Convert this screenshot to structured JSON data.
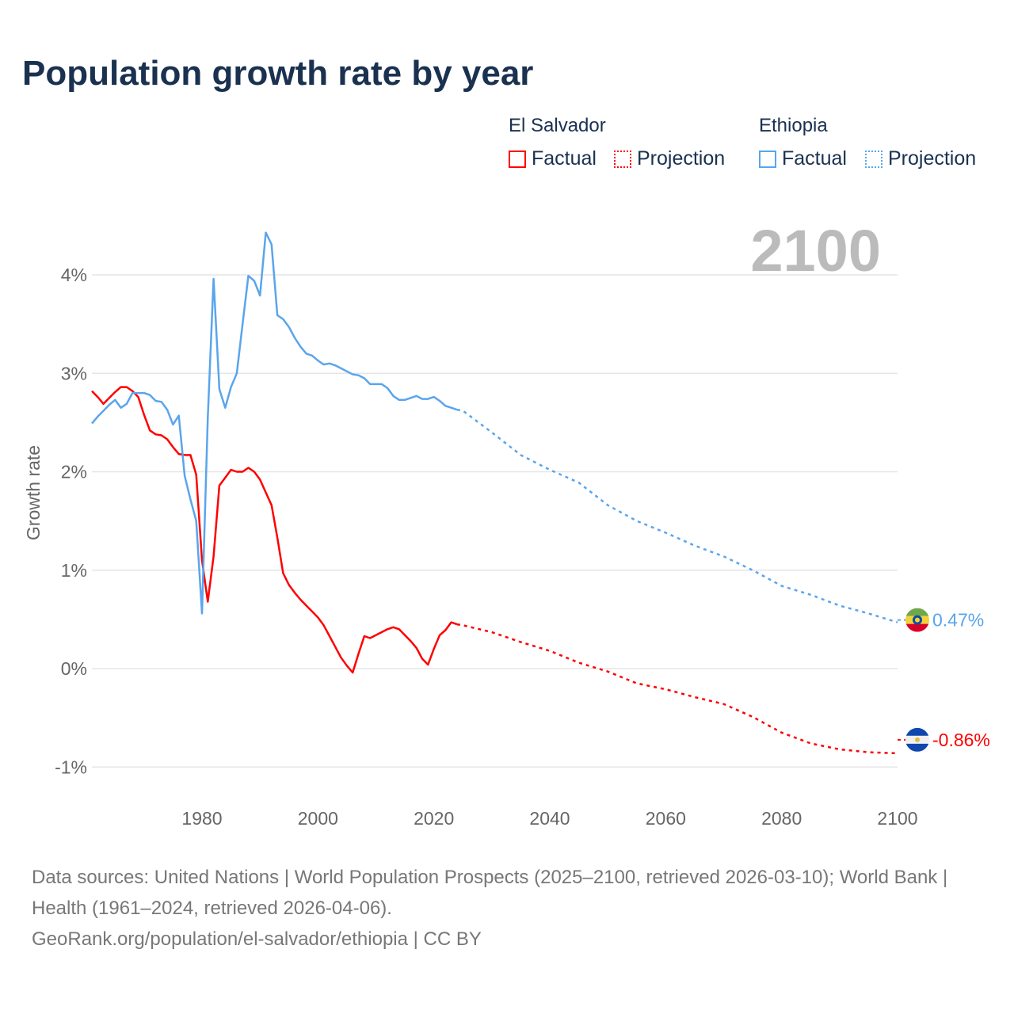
{
  "title": "Population growth rate by year",
  "legend": {
    "groups": [
      {
        "country": "El Salvador",
        "factual": "Factual",
        "projection": "Projection",
        "color": "#ff0000"
      },
      {
        "country": "Ethiopia",
        "factual": "Factual",
        "projection": "Projection",
        "color": "#5aa5ec"
      }
    ]
  },
  "current_year_label": "2100",
  "footer": {
    "sources": "Data sources: United Nations | World Population Prospects (2025–2100, retrieved 2026-03-10); World Bank | Health (1961–2024, retrieved 2026-04-06).",
    "credit": "GeoRank.org/population/el-salvador/ethiopia | CC BY"
  },
  "chart_data": {
    "type": "line",
    "title": "Population growth rate by year",
    "xlabel": "",
    "ylabel": "Growth rate",
    "xlim": [
      1961,
      2100
    ],
    "ylim": [
      -1.3,
      4.6
    ],
    "x_ticks": [
      1980,
      2000,
      2020,
      2040,
      2060,
      2080,
      2100
    ],
    "x_tick_labels": [
      "1980",
      "2000",
      "2020",
      "2040",
      "2060",
      "2080",
      "2100"
    ],
    "y_ticks": [
      -1,
      0,
      1,
      2,
      3,
      4
    ],
    "y_tick_labels": [
      "-1%",
      "0%",
      "1%",
      "2%",
      "3%",
      "4%"
    ],
    "grid": true,
    "series": [
      {
        "name": "El Salvador",
        "color": "#ff0000",
        "end_label": "-0.86%",
        "flag": "el-salvador-flag",
        "factual": {
          "start_year": 1961,
          "values": [
            2.82,
            2.76,
            2.69,
            2.75,
            2.81,
            2.86,
            2.86,
            2.82,
            2.76,
            2.58,
            2.42,
            2.38,
            2.37,
            2.33,
            2.25,
            2.18,
            2.17,
            2.17,
            1.97,
            1.1,
            0.68,
            1.14,
            1.86,
            1.94,
            2.02,
            2.0,
            2.0,
            2.04,
            2.0,
            1.92,
            1.79,
            1.66,
            1.33,
            0.97,
            0.85,
            0.77,
            0.7,
            0.64,
            0.58,
            0.52,
            0.44,
            0.33,
            0.22,
            0.11,
            0.03,
            -0.04,
            0.15,
            0.33,
            0.31,
            0.34,
            0.37,
            0.4,
            0.42,
            0.4,
            0.34,
            0.28,
            0.21,
            0.1,
            0.04,
            0.2,
            0.34,
            0.39,
            0.47,
            0.45
          ]
        },
        "projection": {
          "years": [
            2024,
            2025,
            2030,
            2035,
            2040,
            2045,
            2050,
            2055,
            2060,
            2065,
            2070,
            2075,
            2080,
            2085,
            2090,
            2095,
            2100
          ],
          "values": [
            0.45,
            0.44,
            0.37,
            0.27,
            0.18,
            0.06,
            -0.03,
            -0.15,
            -0.21,
            -0.29,
            -0.36,
            -0.49,
            -0.65,
            -0.76,
            -0.82,
            -0.85,
            -0.86
          ]
        }
      },
      {
        "name": "Ethiopia",
        "color": "#5aa5ec",
        "end_label": "0.47%",
        "flag": "ethiopia-flag",
        "factual": {
          "start_year": 1961,
          "values": [
            2.49,
            2.56,
            2.62,
            2.68,
            2.73,
            2.65,
            2.69,
            2.8,
            2.8,
            2.8,
            2.78,
            2.72,
            2.71,
            2.63,
            2.48,
            2.57,
            1.96,
            1.72,
            1.5,
            0.56,
            2.55,
            3.96,
            2.84,
            2.65,
            2.86,
            3.0,
            3.5,
            3.99,
            3.94,
            3.79,
            4.43,
            4.31,
            3.59,
            3.55,
            3.47,
            3.36,
            3.27,
            3.2,
            3.18,
            3.13,
            3.09,
            3.1,
            3.08,
            3.05,
            3.02,
            2.99,
            2.98,
            2.95,
            2.89,
            2.89,
            2.89,
            2.85,
            2.77,
            2.73,
            2.73,
            2.75,
            2.77,
            2.74,
            2.74,
            2.76,
            2.72,
            2.67,
            2.65,
            2.63
          ]
        },
        "projection": {
          "years": [
            2024,
            2025,
            2030,
            2035,
            2040,
            2045,
            2050,
            2055,
            2060,
            2065,
            2070,
            2075,
            2080,
            2085,
            2090,
            2095,
            2100
          ],
          "values": [
            2.63,
            2.62,
            2.4,
            2.17,
            2.02,
            1.89,
            1.66,
            1.5,
            1.38,
            1.25,
            1.14,
            1.0,
            0.84,
            0.75,
            0.64,
            0.56,
            0.47
          ]
        }
      }
    ]
  }
}
